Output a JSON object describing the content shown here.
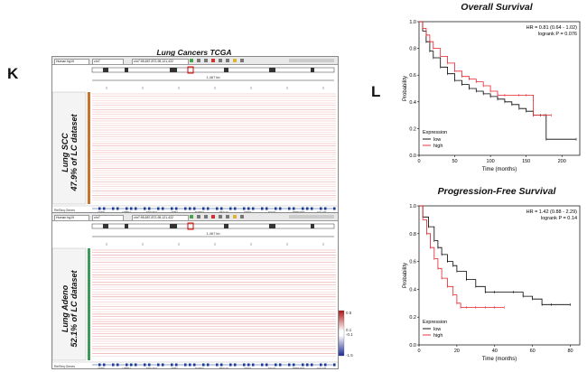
{
  "panel_k": {
    "letter": "K",
    "title": "Lung Cancers TCGA",
    "toolbar": {
      "genome": "Human hg19",
      "chrom": "chr7",
      "locus": "chr7:95,657,872-95,121,422"
    },
    "ruler_label": "1,467 kb",
    "track_top": {
      "label_line1": "Lung SCC",
      "label_line2": "47.9% of LC dataset"
    },
    "track_bottom": {
      "label_line1": "Lung Adeno",
      "label_line2": "52.1% of LC dataset"
    },
    "refseq_label": "RefSeq Genes",
    "genes": [
      "ASNS",
      "LMBR1",
      "SDHAF3",
      "ASB4",
      "DAPK3",
      "PEG10",
      "CDK6",
      "SGCE",
      "PPP1R9A",
      "CALCR"
    ],
    "colorbar": {
      "max": "0.5",
      "mid_hi": "0.1",
      "mid_lo": "-0.1",
      "min": "-1.5"
    }
  },
  "panel_l": {
    "letter": "L",
    "os": {
      "title": "Overall Survival",
      "hr_text": "HR = 0.81 (0.64 - 1.02)",
      "logrank_text": "logrank P = 0.076",
      "ylabel": "Probability",
      "xlabel": "Time (months)",
      "legend_title": "Expression",
      "legend_low": "low",
      "legend_high": "high",
      "xticks": [
        "0",
        "50",
        "100",
        "150",
        "200"
      ],
      "yticks": [
        "0.0",
        "0.2",
        "0.4",
        "0.6",
        "0.8",
        "1.0"
      ]
    },
    "pfs": {
      "title": "Progression-Free Survival",
      "hr_text": "HR = 1.42 (0.88 - 2.29)",
      "logrank_text": "logrank P = 0.14",
      "ylabel": "Probability",
      "xlabel": "Time (months)",
      "legend_title": "Expression",
      "legend_low": "low",
      "legend_high": "high",
      "xticks": [
        "0",
        "20",
        "40",
        "60",
        "80"
      ],
      "yticks": [
        "0.0",
        "0.2",
        "0.4",
        "0.6",
        "0.8",
        "1.0"
      ]
    },
    "colors": {
      "low": "#000000",
      "high": "#e8202a"
    }
  },
  "chart_data": [
    {
      "type": "line",
      "title": "Overall Survival",
      "xlabel": "Time (months)",
      "ylabel": "Probability",
      "xlim": [
        0,
        225
      ],
      "ylim": [
        0,
        1
      ],
      "series": [
        {
          "name": "low",
          "x": [
            0,
            5,
            10,
            15,
            20,
            30,
            40,
            50,
            60,
            70,
            80,
            90,
            100,
            110,
            120,
            130,
            140,
            150,
            160,
            170,
            178,
            178,
            220
          ],
          "y": [
            1.0,
            0.93,
            0.85,
            0.78,
            0.73,
            0.66,
            0.61,
            0.56,
            0.53,
            0.5,
            0.48,
            0.46,
            0.44,
            0.42,
            0.4,
            0.38,
            0.35,
            0.33,
            0.3,
            0.3,
            0.3,
            0.12,
            0.12
          ]
        },
        {
          "name": "high",
          "x": [
            0,
            5,
            10,
            15,
            20,
            30,
            40,
            50,
            60,
            70,
            80,
            90,
            100,
            110,
            120,
            140,
            150,
            160,
            175,
            185
          ],
          "y": [
            1.0,
            0.95,
            0.9,
            0.85,
            0.8,
            0.74,
            0.69,
            0.63,
            0.59,
            0.57,
            0.55,
            0.52,
            0.48,
            0.45,
            0.45,
            0.45,
            0.45,
            0.3,
            0.3,
            0.3
          ]
        }
      ]
    },
    {
      "type": "line",
      "title": "Progression-Free Survival",
      "xlabel": "Time (months)",
      "ylabel": "Probability",
      "xlim": [
        0,
        85
      ],
      "ylim": [
        0,
        1
      ],
      "series": [
        {
          "name": "low",
          "x": [
            0,
            2,
            5,
            8,
            10,
            12,
            15,
            18,
            20,
            25,
            30,
            35,
            40,
            50,
            55,
            60,
            65,
            70,
            80
          ],
          "y": [
            1.0,
            0.92,
            0.85,
            0.75,
            0.7,
            0.65,
            0.6,
            0.57,
            0.53,
            0.47,
            0.42,
            0.38,
            0.38,
            0.38,
            0.35,
            0.33,
            0.29,
            0.29,
            0.29
          ]
        },
        {
          "name": "high",
          "x": [
            0,
            2,
            4,
            6,
            8,
            10,
            12,
            15,
            18,
            20,
            22,
            25,
            30,
            35,
            40,
            45
          ],
          "y": [
            1.0,
            0.9,
            0.8,
            0.7,
            0.62,
            0.55,
            0.48,
            0.42,
            0.36,
            0.3,
            0.27,
            0.27,
            0.27,
            0.27,
            0.27,
            0.27
          ]
        }
      ]
    }
  ]
}
